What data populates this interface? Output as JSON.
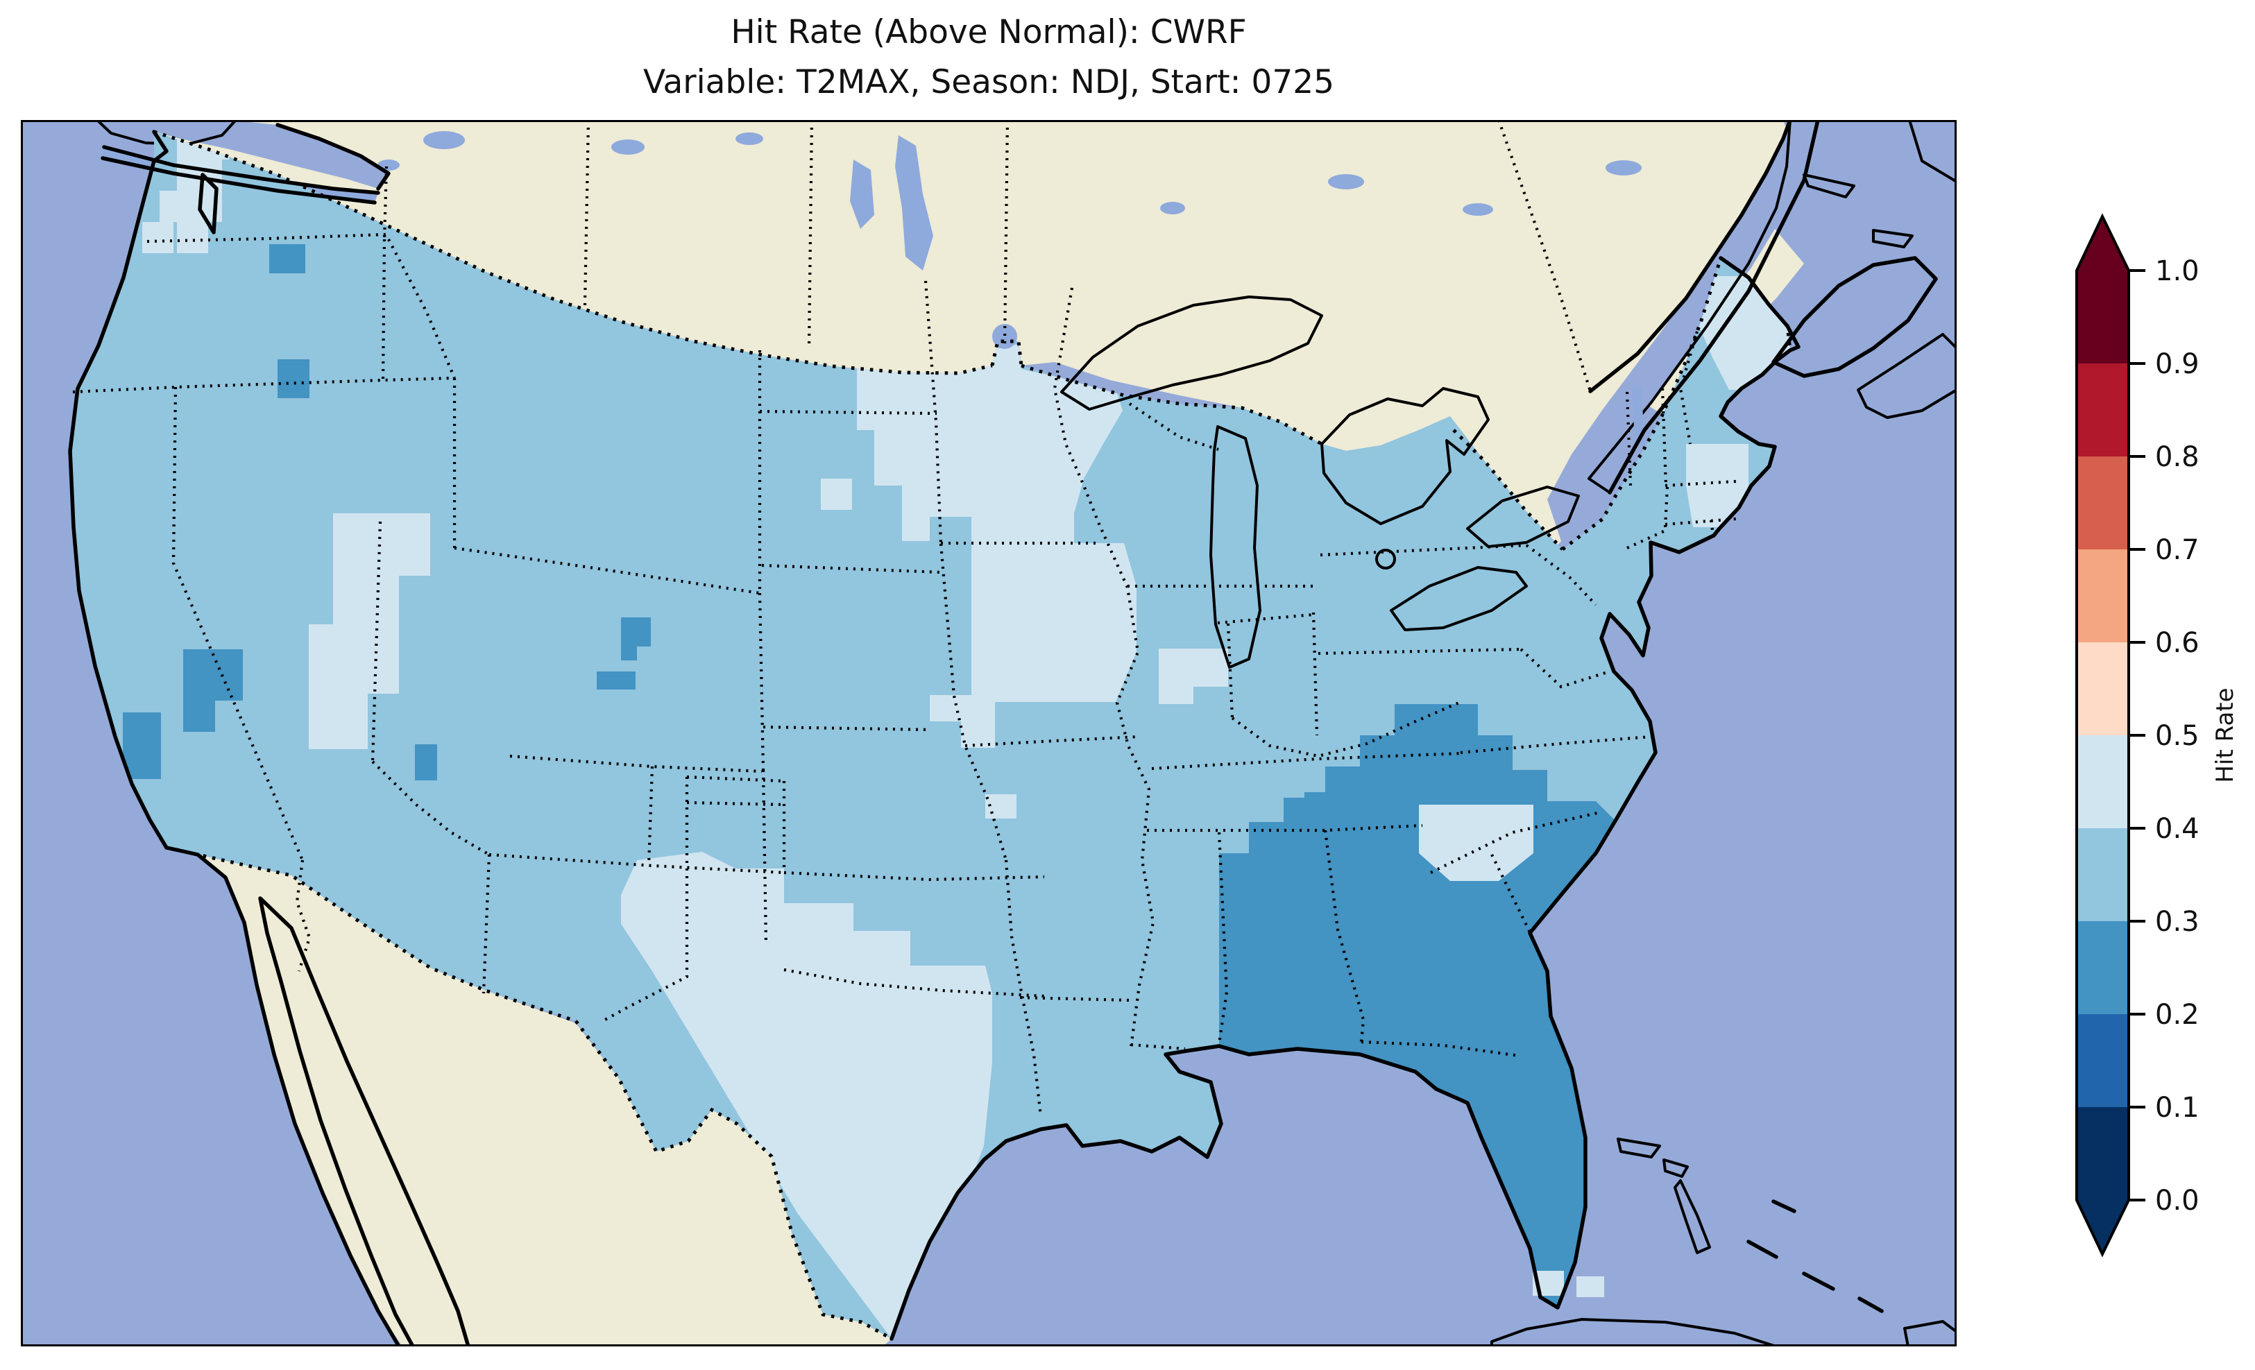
{
  "title": {
    "line1": "Hit Rate (Above Normal): CWRF",
    "line2": "Variable: T2MAX, Season: NDJ, Start: 0725"
  },
  "chart_data": {
    "type": "choropleth_map",
    "title": "Hit Rate (Above Normal): CWRF",
    "subtitle": "Variable: T2MAX, Season: NDJ, Start: 0725",
    "metric": "Hit Rate (Above Normal)",
    "model": "CWRF",
    "variable": "T2MAX",
    "season": "NDJ",
    "start": "0725",
    "region_shown": "Contiguous United States (data) with surrounding Canada, Mexico, Atlantic and Pacific",
    "colorbar": {
      "label": "Hit Rate",
      "range": [
        0.0,
        1.0
      ],
      "extend": "both",
      "ticks": [
        "1.0",
        "0.9",
        "0.8",
        "0.7",
        "0.6",
        "0.5",
        "0.4",
        "0.3",
        "0.2",
        "0.1",
        "0.0"
      ],
      "colors": [
        "#053061",
        "#2166ac",
        "#4393c3",
        "#92c5de",
        "#d1e5f0",
        "#fddbc7",
        "#f4a582",
        "#d6604d",
        "#b2182b",
        "#67001f"
      ],
      "bin_colors": {
        "low": "#4393c3",
        "mid": "#92c5de",
        "high": "#d1e5f0"
      },
      "legend_position": "right"
    },
    "map_values": {
      "base_bin": "0.3-0.4",
      "regions": [
        {
          "area": "Most of CONUS",
          "bin": "0.3-0.4",
          "hit_rate": 0.35
        },
        {
          "area": "Alabama, Georgia, Florida, coastal South Carolina, E Tennessee / W North Carolina",
          "bin": "0.2-0.3",
          "hit_rate": 0.25
        },
        {
          "area": "Western and central Texas with SW Oklahoma",
          "bin": "0.4-0.5",
          "hit_rate": 0.45
        },
        {
          "area": "E Montana, North Dakota, W Minnesota, NE South Dakota and Iowa band",
          "bin": "0.4-0.5",
          "hit_rate": 0.45
        },
        {
          "area": "Puget Sound lowlands, W Washington",
          "bin": "0.4-0.5",
          "hit_rate": 0.45
        },
        {
          "area": "Central Idaho",
          "bin": "0.4-0.5",
          "hit_rate": 0.45
        },
        {
          "area": "Central and coastal Maine",
          "bin": "0.4-0.5",
          "hit_rate": 0.45
        },
        {
          "area": "Interior South Carolina",
          "bin": "0.4-0.5",
          "hit_rate": 0.45
        },
        {
          "area": "E Massachusetts / SE New Hampshire coast",
          "bin": "0.4-0.5",
          "hit_rate": 0.45
        },
        {
          "area": "N-central Oregon small patch",
          "bin": "0.2-0.3",
          "hit_rate": 0.25
        },
        {
          "area": "SE Oregon small patch",
          "bin": "0.2-0.3",
          "hit_rate": 0.25
        },
        {
          "area": "NE California / Tahoe small patch",
          "bin": "0.2-0.3",
          "hit_rate": 0.25
        },
        {
          "area": "Central California small patch",
          "bin": "0.2-0.3",
          "hit_rate": 0.25
        },
        {
          "area": "Central Utah two small patches",
          "bin": "0.2-0.3",
          "hit_rate": 0.25
        },
        {
          "area": "NW Arizona single cell",
          "bin": "0.2-0.3",
          "hit_rate": 0.25
        }
      ]
    },
    "layout": {
      "projection": "Lambert Conformal (approx.)",
      "grid": "pcolormesh cells ~45px",
      "frame": [
        30,
        173,
        2820,
        1941
      ]
    }
  },
  "map_colors": {
    "ocean": "#95aad8",
    "land": "#eeebd6",
    "lakes": "#8ea9dc",
    "frame": "#000000",
    "background": "#ffffff"
  }
}
